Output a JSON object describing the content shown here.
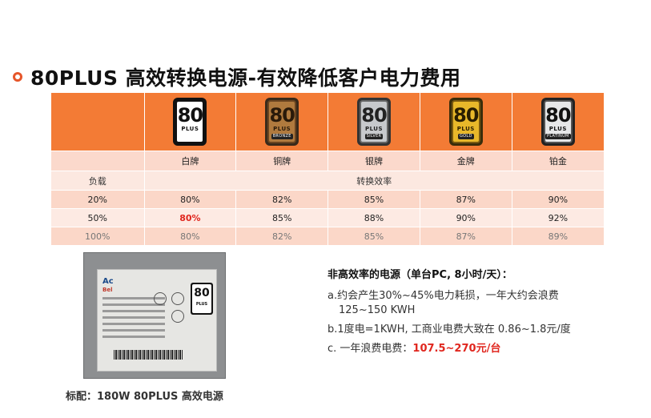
{
  "title": "80PLUS 高效转换电源-有效降低客户电力费用",
  "table": {
    "badges": [
      {
        "num": "80",
        "plus": "PLUS",
        "tier": ""
      },
      {
        "num": "80",
        "plus": "PLUS",
        "tier": "BRONZE"
      },
      {
        "num": "80",
        "plus": "PLUS",
        "tier": "SILVER"
      },
      {
        "num": "80",
        "plus": "PLUS",
        "tier": "GOLD"
      },
      {
        "num": "80",
        "plus": "PLUS",
        "tier": "PLATINUM"
      }
    ],
    "tiers": [
      "白牌",
      "铜牌",
      "银牌",
      "金牌",
      "铂金"
    ],
    "load_header": "负载",
    "efficiency_header": "转换效率",
    "rows": [
      {
        "load": "20%",
        "values": [
          "80%",
          "82%",
          "85%",
          "87%",
          "90%"
        ]
      },
      {
        "load": "50%",
        "values": [
          "80%",
          "85%",
          "88%",
          "90%",
          "92%"
        ]
      },
      {
        "load": "100%",
        "values": [
          "80%",
          "82%",
          "85%",
          "87%",
          "89%"
        ]
      }
    ]
  },
  "psu_image": {
    "brand": "Ac",
    "brand_sub": "Bel",
    "badge_num": "80",
    "badge_plus": "PLUS"
  },
  "caption": "标配：180W 80PLUS 高效电源",
  "notes": {
    "heading": "非高效率的电源（单台PC, 8小时/天）：",
    "a_line1": "a.约会产生30%~45%电力耗损，一年大约会浪费",
    "a_line2": "125~150 KWH",
    "b_line": "b.1度电=1KWH, 工商业电费大致在 0.86~1.8元/度",
    "c_prefix": "c. 一年浪费电费：",
    "c_highlight": "107.5~270元/台"
  },
  "colors": {
    "header_orange": "#f37b35",
    "accent_red": "#e0261e"
  }
}
